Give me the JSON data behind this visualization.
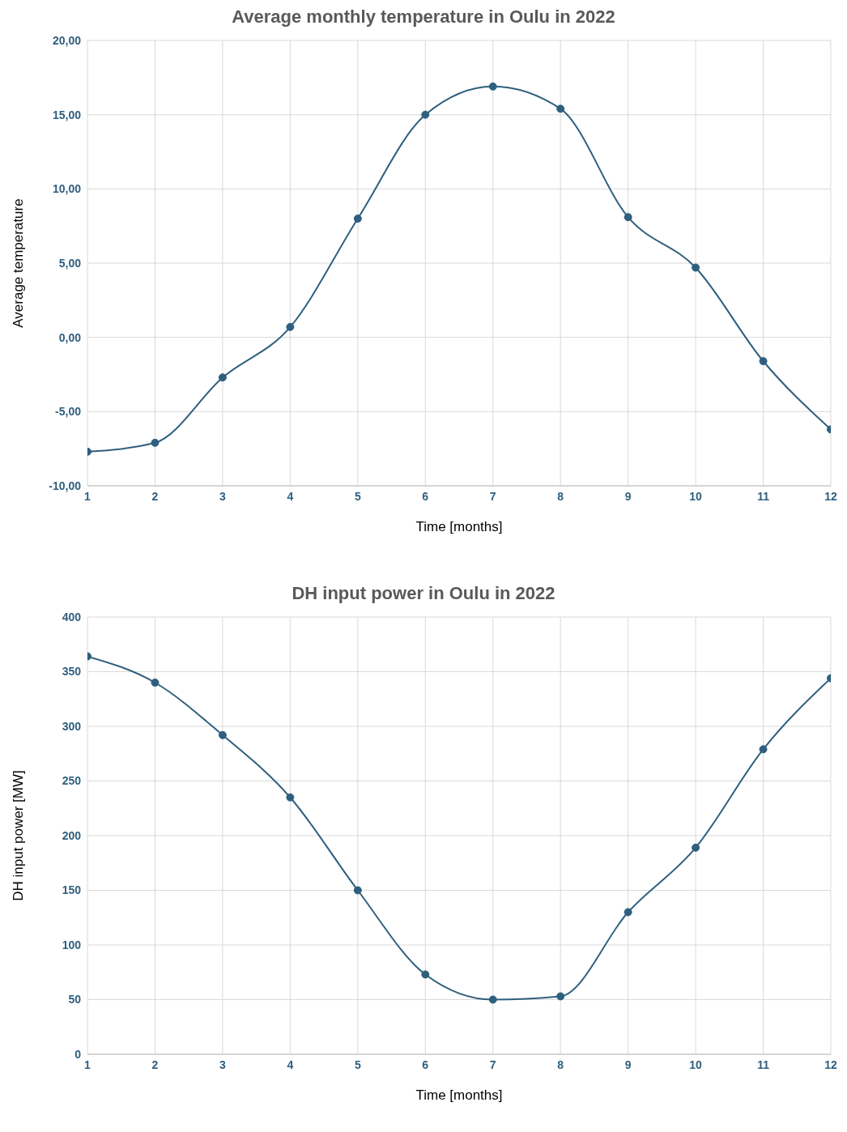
{
  "chart_data": [
    {
      "type": "line",
      "title": "Average monthly temperature in Oulu in 2022",
      "xlabel": "Time [months]",
      "ylabel": "Average temperature",
      "x": [
        1,
        2,
        3,
        4,
        5,
        6,
        7,
        8,
        9,
        10,
        11,
        12
      ],
      "xlim": [
        1,
        12
      ],
      "xticks": [
        1,
        2,
        3,
        4,
        5,
        6,
        7,
        8,
        9,
        10,
        11,
        12
      ],
      "ylim": [
        -10,
        20
      ],
      "yticks": [
        {
          "value": -10,
          "label": "-10,00"
        },
        {
          "value": -5,
          "label": "-5,00"
        },
        {
          "value": 0,
          "label": "0,00"
        },
        {
          "value": 5,
          "label": "5,00"
        },
        {
          "value": 10,
          "label": "10,00"
        },
        {
          "value": 15,
          "label": "15,00"
        },
        {
          "value": 20,
          "label": "20,00"
        }
      ],
      "grid": true,
      "legend": false,
      "marker": "circle",
      "line_style": "solid",
      "series": [
        {
          "color": "#2f5f7e",
          "values": [
            -7.7,
            -7.1,
            -2.7,
            0.7,
            8.0,
            15.0,
            16.9,
            15.4,
            8.1,
            4.7,
            -1.6,
            -6.2
          ]
        }
      ]
    },
    {
      "type": "line",
      "title": "DH input power in Oulu in 2022",
      "xlabel": "Time [months]",
      "ylabel": "DH input power [MW]",
      "x": [
        1,
        2,
        3,
        4,
        5,
        6,
        7,
        8,
        9,
        10,
        11,
        12
      ],
      "xlim": [
        1,
        12
      ],
      "xticks": [
        1,
        2,
        3,
        4,
        5,
        6,
        7,
        8,
        9,
        10,
        11,
        12
      ],
      "ylim": [
        0,
        400
      ],
      "yticks": [
        0,
        50,
        100,
        150,
        200,
        250,
        300,
        350,
        400
      ],
      "grid": true,
      "legend": false,
      "marker": "circle",
      "line_style": "solid",
      "series": [
        {
          "color": "#2f5f7e",
          "values": [
            364,
            340,
            292,
            235,
            150,
            73,
            50,
            53,
            130,
            189,
            279,
            344
          ]
        }
      ]
    }
  ]
}
